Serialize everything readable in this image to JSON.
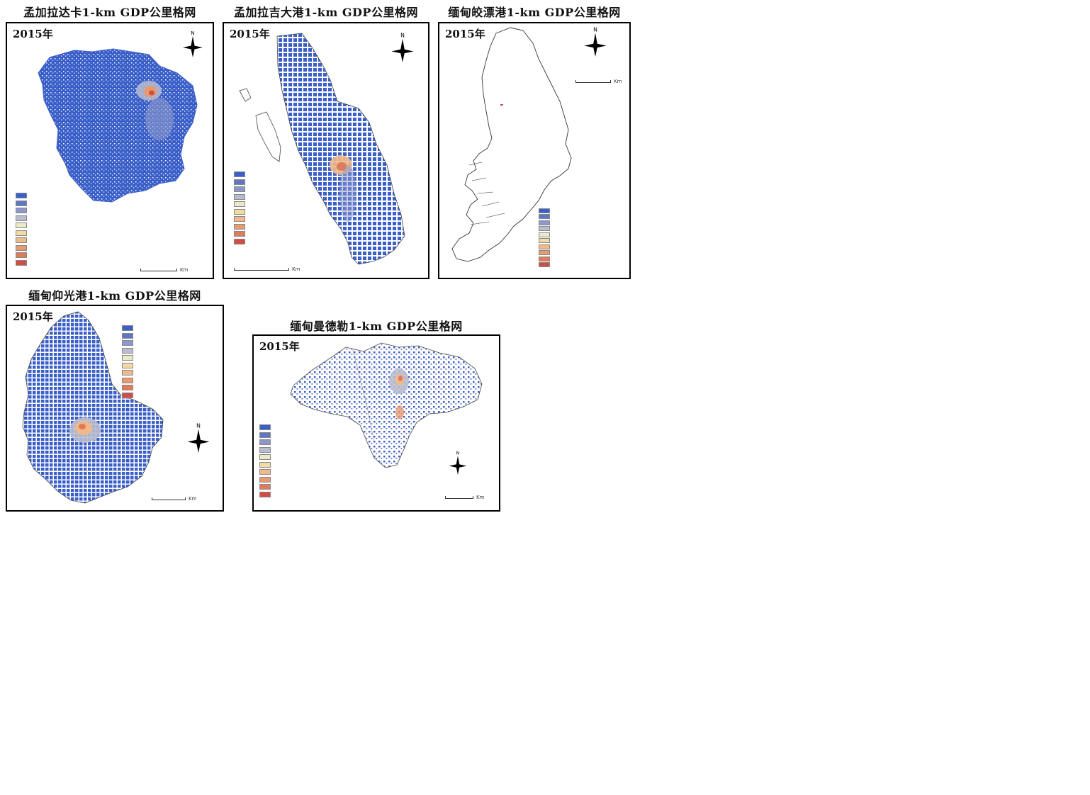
{
  "palette": [
    "#3b5fc8",
    "#5d77c4",
    "#8c98cc",
    "#b9bccf",
    "#ece9c8",
    "#f3d9a4",
    "#efb98a",
    "#e79a72",
    "#df7a5c",
    "#d14c43"
  ],
  "north_label": "N",
  "panels": [
    {
      "title": "孟加拉达卡1-km GDP公里格网",
      "year": "2015年",
      "legend_title": "",
      "legend": [
        "",
        "",
        "",
        "",
        "",
        "",
        "",
        "",
        "",
        ""
      ],
      "scale_number": "",
      "scale_unit": "Km"
    },
    {
      "title": "孟加拉吉大港1-km GDP公里格网",
      "year": "2015年",
      "legend_title": "",
      "legend": [
        "",
        "",
        "",
        "",
        "",
        "",
        "",
        "",
        "",
        ""
      ],
      "scale_number": "",
      "scale_unit": "Km"
    },
    {
      "title": "缅甸皎漂港1-km GDP公里格网",
      "year": "2015年",
      "legend_title": "",
      "legend": [
        "",
        "",
        "",
        "",
        "",
        "",
        "",
        "",
        "",
        ""
      ],
      "scale_number": "",
      "scale_unit": "Km"
    },
    {
      "title": "缅甸仰光港1-km GDP公里格网",
      "year": "2015年",
      "legend_title": "",
      "legend": [
        "",
        "",
        "",
        "",
        "",
        "",
        "",
        "",
        "",
        ""
      ],
      "scale_number": "",
      "scale_unit": "Km"
    },
    {
      "title": "缅甸曼德勒1-km GDP公里格网",
      "year": "2015年",
      "legend_title": "",
      "legend": [
        "",
        "",
        "",
        "",
        "",
        "",
        "",
        "",
        "",
        ""
      ],
      "scale_number": "",
      "scale_unit": "Km"
    }
  ]
}
